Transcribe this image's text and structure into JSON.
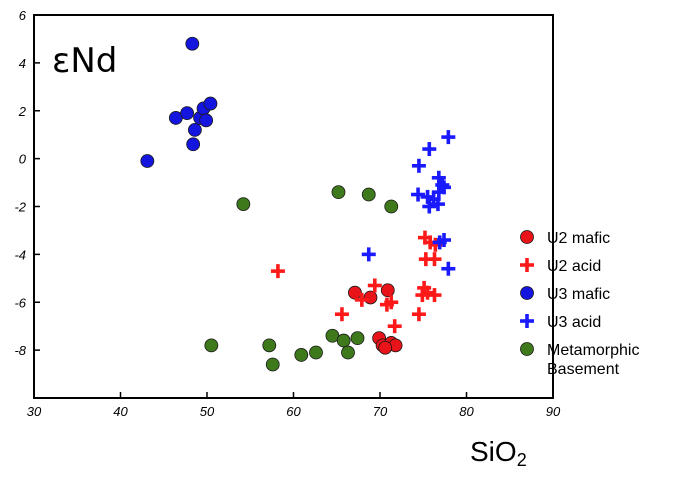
{
  "chart_data": {
    "type": "scatter",
    "title": "",
    "ylabel": "εNd",
    "xlabel_main": "SiO",
    "xlabel_sub": "2",
    "xlim": [
      30,
      90
    ],
    "ylim": [
      -10,
      6
    ],
    "xticks": [
      30,
      40,
      50,
      60,
      70,
      80,
      90
    ],
    "yticks": [
      6,
      4,
      2,
      0,
      -2,
      -4,
      -6,
      -8
    ],
    "grid": false,
    "legend_position": "right",
    "series": [
      {
        "name": "U2 mafic",
        "marker": "circle",
        "color": "#e8141a",
        "points": [
          [
            67.1,
            -5.6
          ],
          [
            68.9,
            -5.8
          ],
          [
            70.9,
            -5.5
          ],
          [
            69.9,
            -7.5
          ],
          [
            70.3,
            -7.8
          ],
          [
            71.3,
            -7.7
          ],
          [
            71.8,
            -7.8
          ],
          [
            70.6,
            -7.9
          ]
        ]
      },
      {
        "name": "U2 acid",
        "marker": "plus",
        "color": "#ff1a1a",
        "points": [
          [
            58.2,
            -4.7
          ],
          [
            65.6,
            -6.5
          ],
          [
            67.9,
            -5.9
          ],
          [
            69.4,
            -5.3
          ],
          [
            70.8,
            -6.1
          ],
          [
            71.3,
            -6.0
          ],
          [
            71.7,
            -7.0
          ],
          [
            74.5,
            -6.5
          ],
          [
            74.9,
            -5.7
          ],
          [
            75.1,
            -5.4
          ],
          [
            75.5,
            -5.6
          ],
          [
            76.3,
            -5.7
          ],
          [
            75.3,
            -4.2
          ],
          [
            76.3,
            -4.2
          ],
          [
            75.2,
            -3.3
          ],
          [
            75.8,
            -3.5
          ],
          [
            76.4,
            -3.6
          ]
        ]
      },
      {
        "name": "U3 mafic",
        "marker": "circle",
        "color": "#1515e0",
        "points": [
          [
            48.3,
            4.8
          ],
          [
            43.1,
            -0.1
          ],
          [
            46.4,
            1.7
          ],
          [
            47.7,
            1.9
          ],
          [
            48.6,
            1.2
          ],
          [
            49.2,
            1.7
          ],
          [
            49.6,
            2.1
          ],
          [
            49.9,
            1.6
          ],
          [
            50.4,
            2.3
          ],
          [
            48.4,
            0.6
          ]
        ]
      },
      {
        "name": "U3 acid",
        "marker": "plus",
        "color": "#1a1aff",
        "points": [
          [
            77.9,
            0.9
          ],
          [
            75.7,
            0.4
          ],
          [
            74.5,
            -0.3
          ],
          [
            74.4,
            -1.5
          ],
          [
            75.5,
            -1.6
          ],
          [
            75.7,
            -2.0
          ],
          [
            76.2,
            -1.7
          ],
          [
            76.7,
            -1.9
          ],
          [
            76.8,
            -1.4
          ],
          [
            77.2,
            -1.1
          ],
          [
            76.8,
            -0.8
          ],
          [
            77.4,
            -1.2
          ],
          [
            68.7,
            -4.0
          ],
          [
            76.9,
            -3.5
          ],
          [
            77.4,
            -3.4
          ],
          [
            77.9,
            -4.6
          ]
        ]
      },
      {
        "name": "Metamorphic Basement",
        "legend_lines": [
          "Metamorphic",
          "Basement"
        ],
        "marker": "circle",
        "color": "#3e7a1c",
        "points": [
          [
            54.2,
            -1.9
          ],
          [
            50.5,
            -7.8
          ],
          [
            57.2,
            -7.8
          ],
          [
            57.6,
            -8.6
          ],
          [
            60.9,
            -8.2
          ],
          [
            62.6,
            -8.1
          ],
          [
            64.5,
            -7.4
          ],
          [
            65.8,
            -7.6
          ],
          [
            66.3,
            -8.1
          ],
          [
            67.4,
            -7.5
          ],
          [
            65.2,
            -1.4
          ],
          [
            68.7,
            -1.5
          ],
          [
            71.3,
            -2.0
          ]
        ]
      }
    ]
  }
}
